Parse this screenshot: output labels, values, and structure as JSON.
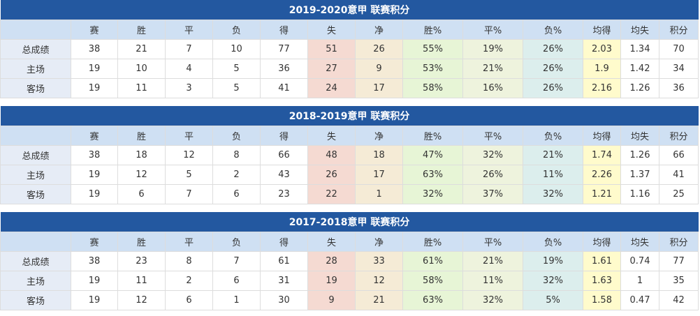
{
  "headers": [
    "",
    "赛",
    "胜",
    "平",
    "负",
    "得",
    "失",
    "净",
    "胜%",
    "平%",
    "负%",
    "均得",
    "均失",
    "积分"
  ],
  "tables": [
    {
      "title": "2019-2020意甲 联赛积分",
      "rows": [
        [
          "总成绩",
          "38",
          "21",
          "7",
          "10",
          "77",
          "51",
          "26",
          "55%",
          "19%",
          "26%",
          "2.03",
          "1.34",
          "70"
        ],
        [
          "主场",
          "19",
          "10",
          "4",
          "5",
          "36",
          "27",
          "9",
          "53%",
          "21%",
          "26%",
          "1.9",
          "1.42",
          "34"
        ],
        [
          "客场",
          "19",
          "11",
          "3",
          "5",
          "41",
          "24",
          "17",
          "58%",
          "16%",
          "26%",
          "2.16",
          "1.26",
          "36"
        ]
      ]
    },
    {
      "title": "2018-2019意甲 联赛积分",
      "rows": [
        [
          "总成绩",
          "38",
          "18",
          "12",
          "8",
          "66",
          "48",
          "18",
          "47%",
          "32%",
          "21%",
          "1.74",
          "1.26",
          "66"
        ],
        [
          "主场",
          "19",
          "12",
          "5",
          "2",
          "43",
          "26",
          "17",
          "63%",
          "26%",
          "11%",
          "2.26",
          "1.37",
          "41"
        ],
        [
          "客场",
          "19",
          "6",
          "7",
          "6",
          "23",
          "22",
          "1",
          "32%",
          "37%",
          "32%",
          "1.21",
          "1.16",
          "25"
        ]
      ]
    },
    {
      "title": "2017-2018意甲 联赛积分",
      "rows": [
        [
          "总成绩",
          "38",
          "23",
          "8",
          "7",
          "61",
          "28",
          "33",
          "61%",
          "21%",
          "19%",
          "1.61",
          "0.74",
          "77"
        ],
        [
          "主场",
          "19",
          "11",
          "2",
          "6",
          "31",
          "19",
          "12",
          "58%",
          "11%",
          "32%",
          "1.63",
          "1",
          "35"
        ],
        [
          "客场",
          "19",
          "12",
          "6",
          "1",
          "30",
          "9",
          "21",
          "63%",
          "32%",
          "5%",
          "1.58",
          "0.47",
          "42"
        ]
      ]
    }
  ]
}
